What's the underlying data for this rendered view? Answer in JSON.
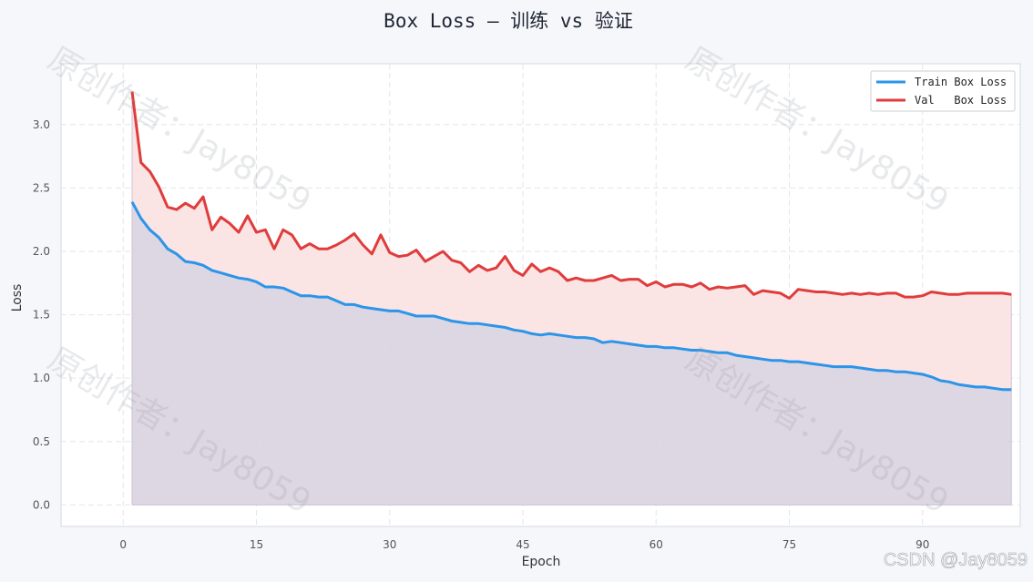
{
  "chart_data": {
    "type": "area",
    "title": "Box Loss — 训练 vs 验证",
    "xlabel": "Epoch",
    "ylabel": "Loss",
    "xlim": [
      -7,
      101
    ],
    "ylim": [
      -0.17,
      3.48
    ],
    "xticks": [
      0,
      15,
      30,
      45,
      60,
      75,
      90
    ],
    "yticks": [
      0.0,
      0.5,
      1.0,
      1.5,
      2.0,
      2.5,
      3.0
    ],
    "xtick_labels": [
      "0",
      "15",
      "30",
      "45",
      "60",
      "75",
      "90"
    ],
    "ytick_labels": [
      "0.0",
      "0.5",
      "1.0",
      "1.5",
      "2.0",
      "2.5",
      "3.0"
    ],
    "grid": true,
    "legend_position": "top-right",
    "x": [
      1,
      2,
      3,
      4,
      5,
      6,
      7,
      8,
      9,
      10,
      11,
      12,
      13,
      14,
      15,
      16,
      17,
      18,
      19,
      20,
      21,
      22,
      23,
      24,
      25,
      26,
      27,
      28,
      29,
      30,
      31,
      32,
      33,
      34,
      35,
      36,
      37,
      38,
      39,
      40,
      41,
      42,
      43,
      44,
      45,
      46,
      47,
      48,
      49,
      50,
      51,
      52,
      53,
      54,
      55,
      56,
      57,
      58,
      59,
      60,
      61,
      62,
      63,
      64,
      65,
      66,
      67,
      68,
      69,
      70,
      71,
      72,
      73,
      74,
      75,
      76,
      77,
      78,
      79,
      80,
      81,
      82,
      83,
      84,
      85,
      86,
      87,
      88,
      89,
      90,
      91,
      92,
      93,
      94,
      95,
      96,
      97,
      98,
      99,
      100
    ],
    "series": [
      {
        "name": "Train Box Loss",
        "color": "#2b95e9",
        "fill": "#d9d2e0",
        "values": [
          2.39,
          2.26,
          2.17,
          2.11,
          2.02,
          1.98,
          1.92,
          1.91,
          1.89,
          1.85,
          1.83,
          1.81,
          1.79,
          1.78,
          1.76,
          1.72,
          1.72,
          1.71,
          1.68,
          1.65,
          1.65,
          1.64,
          1.64,
          1.61,
          1.58,
          1.58,
          1.56,
          1.55,
          1.54,
          1.53,
          1.53,
          1.51,
          1.49,
          1.49,
          1.49,
          1.47,
          1.45,
          1.44,
          1.43,
          1.43,
          1.42,
          1.41,
          1.4,
          1.38,
          1.37,
          1.35,
          1.34,
          1.35,
          1.34,
          1.33,
          1.32,
          1.32,
          1.31,
          1.28,
          1.29,
          1.28,
          1.27,
          1.26,
          1.25,
          1.25,
          1.24,
          1.24,
          1.23,
          1.22,
          1.22,
          1.21,
          1.2,
          1.2,
          1.18,
          1.17,
          1.16,
          1.15,
          1.14,
          1.14,
          1.13,
          1.13,
          1.12,
          1.11,
          1.1,
          1.09,
          1.09,
          1.09,
          1.08,
          1.07,
          1.06,
          1.06,
          1.05,
          1.05,
          1.04,
          1.03,
          1.01,
          0.98,
          0.97,
          0.95,
          0.94,
          0.93,
          0.93,
          0.92,
          0.91,
          0.91
        ]
      },
      {
        "name": "Val   Box Loss",
        "color": "#e03c3c",
        "fill": "#fbe3e3",
        "values": [
          3.26,
          2.7,
          2.63,
          2.51,
          2.35,
          2.33,
          2.38,
          2.34,
          2.43,
          2.17,
          2.27,
          2.22,
          2.15,
          2.28,
          2.15,
          2.17,
          2.02,
          2.17,
          2.13,
          2.02,
          2.06,
          2.02,
          2.02,
          2.05,
          2.09,
          2.14,
          2.05,
          1.98,
          2.13,
          1.99,
          1.96,
          1.97,
          2.01,
          1.92,
          1.96,
          2.0,
          1.93,
          1.91,
          1.84,
          1.89,
          1.85,
          1.87,
          1.96,
          1.85,
          1.81,
          1.9,
          1.84,
          1.87,
          1.84,
          1.77,
          1.79,
          1.77,
          1.77,
          1.79,
          1.81,
          1.77,
          1.78,
          1.78,
          1.73,
          1.76,
          1.72,
          1.74,
          1.74,
          1.72,
          1.75,
          1.7,
          1.72,
          1.71,
          1.72,
          1.73,
          1.66,
          1.69,
          1.68,
          1.67,
          1.63,
          1.7,
          1.69,
          1.68,
          1.68,
          1.67,
          1.66,
          1.67,
          1.66,
          1.67,
          1.66,
          1.67,
          1.67,
          1.64,
          1.64,
          1.65,
          1.68,
          1.67,
          1.66,
          1.66,
          1.67,
          1.67,
          1.67,
          1.67,
          1.67,
          1.66
        ]
      }
    ]
  },
  "watermarks": [
    "原创作者：Jay8059",
    "原创作者：Jay8059",
    "原创作者：Jay8059",
    "原创作者：Jay8059"
  ],
  "credit": "CSDN @Jay8059"
}
